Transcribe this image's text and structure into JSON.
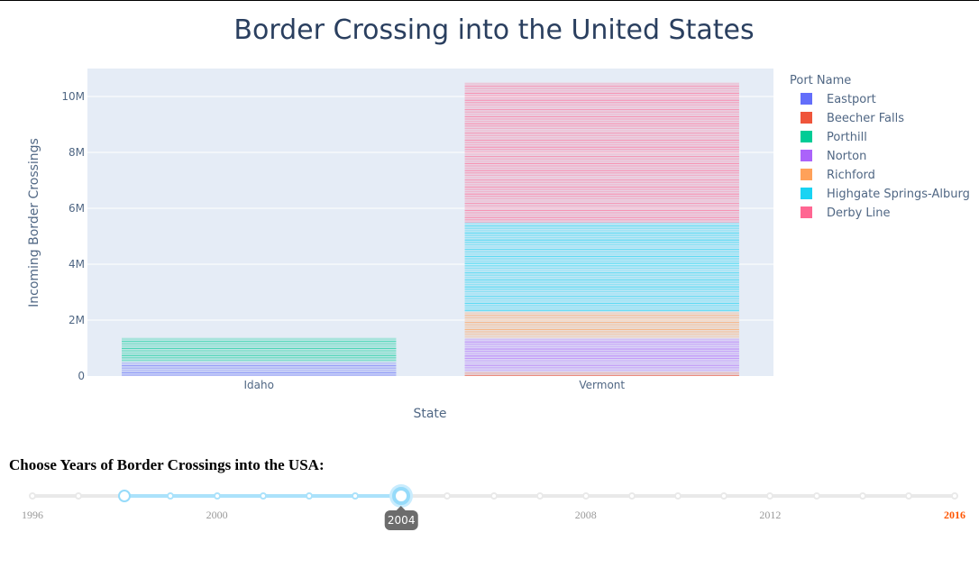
{
  "chart_data": {
    "type": "bar",
    "barmode": "stack",
    "title": "Border Crossing into the United States",
    "xlabel": "State",
    "ylabel": "Incoming Border Crossings",
    "categories": [
      "Idaho",
      "Vermont"
    ],
    "ylim": [
      0,
      11000000
    ],
    "yticks": [
      0,
      2000000,
      4000000,
      6000000,
      8000000,
      10000000
    ],
    "ytick_labels": [
      "0",
      "2M",
      "4M",
      "6M",
      "8M",
      "10M"
    ],
    "grid": true,
    "legend_title": "Port Name",
    "legend_placement": "top-right",
    "series": [
      {
        "name": "Eastport",
        "color": "#636efa",
        "values": [
          500000,
          0
        ]
      },
      {
        "name": "Beecher Falls",
        "color": "#ef553b",
        "values": [
          0,
          150000
        ]
      },
      {
        "name": "Porthill",
        "color": "#00cc96",
        "values": [
          870000,
          0
        ]
      },
      {
        "name": "Norton",
        "color": "#ab63fa",
        "values": [
          0,
          1200000
        ]
      },
      {
        "name": "Richford",
        "color": "#ffa15a",
        "values": [
          0,
          950000
        ]
      },
      {
        "name": "Highgate Springs-Alburg",
        "color": "#19d3f3",
        "values": [
          0,
          3200000
        ]
      },
      {
        "name": "Derby Line",
        "color": "#ff6692",
        "values": [
          0,
          5000000
        ]
      }
    ]
  },
  "slider": {
    "heading": "Choose Years of Border Crossings into the USA:",
    "min": 1996,
    "max": 2016,
    "step": 1,
    "value": [
      1998,
      2004
    ],
    "marks": [
      "1996",
      "2000",
      "2004",
      "2008",
      "2012",
      "2016"
    ],
    "tooltip": "2004"
  }
}
